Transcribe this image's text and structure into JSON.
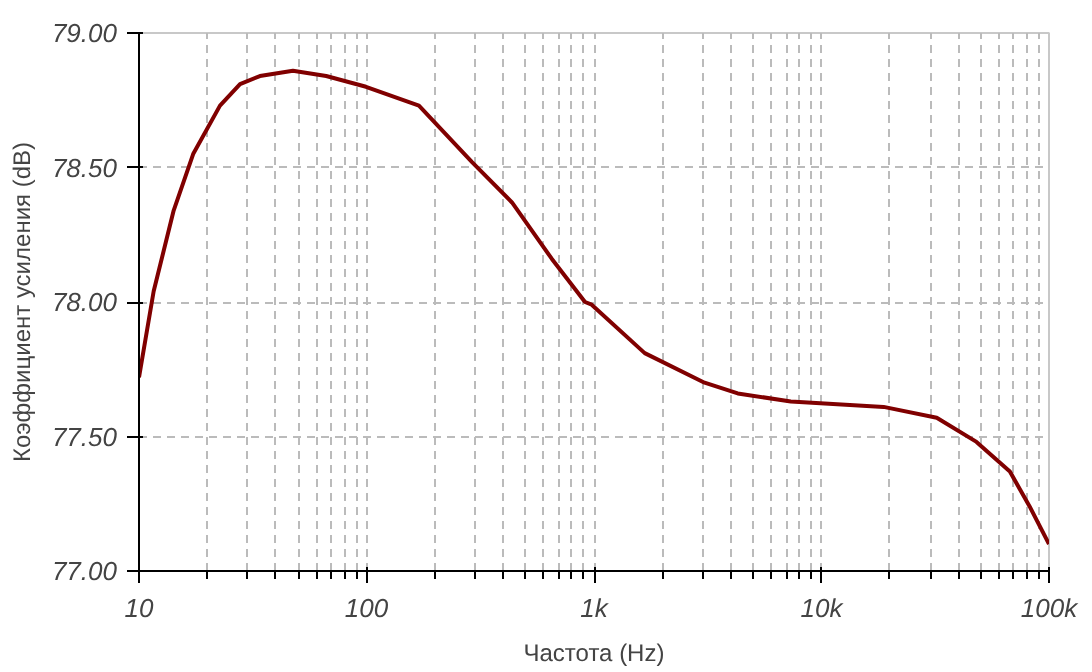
{
  "chart_data": {
    "type": "line",
    "xlabel": "Частота (Hz)",
    "ylabel": "Коэффициент усиления (dB)",
    "log": "x",
    "grid": true,
    "line_style": "solid",
    "xlim": [
      10,
      100000
    ],
    "xticks": [
      {
        "value": 10,
        "label": "10"
      },
      {
        "value": 100,
        "label": "100"
      },
      {
        "value": 1000,
        "label": "1k"
      },
      {
        "value": 10000,
        "label": "10k"
      },
      {
        "value": 100000,
        "label": "100k"
      }
    ],
    "ylim": [
      77,
      79
    ],
    "yticks": [
      {
        "value": 77,
        "label": "77.00"
      },
      {
        "value": 77.5,
        "label": "77.50"
      },
      {
        "value": 78,
        "label": "78.00"
      },
      {
        "value": 78.5,
        "label": "78.50"
      },
      {
        "value": 79,
        "label": "79.00"
      }
    ],
    "series": [
      {
        "color": "#800000",
        "x": [
          10,
          11.6,
          14.2,
          17.3,
          22.7,
          27.8,
          34,
          47.5,
          66.5,
          99.5,
          170,
          291,
          436,
          653,
          913,
          977,
          1671,
          3062,
          4285,
          7330,
          18750,
          32100,
          48000,
          67300,
          82200,
          100000
        ],
        "values": [
          77.72,
          78.04,
          78.34,
          78.55,
          78.73,
          78.81,
          78.84,
          78.86,
          78.84,
          78.8,
          78.73,
          78.52,
          78.37,
          78.16,
          78.0,
          77.99,
          77.81,
          77.7,
          77.66,
          77.63,
          77.61,
          77.57,
          77.48,
          77.37,
          77.24,
          77.1
        ]
      }
    ]
  }
}
